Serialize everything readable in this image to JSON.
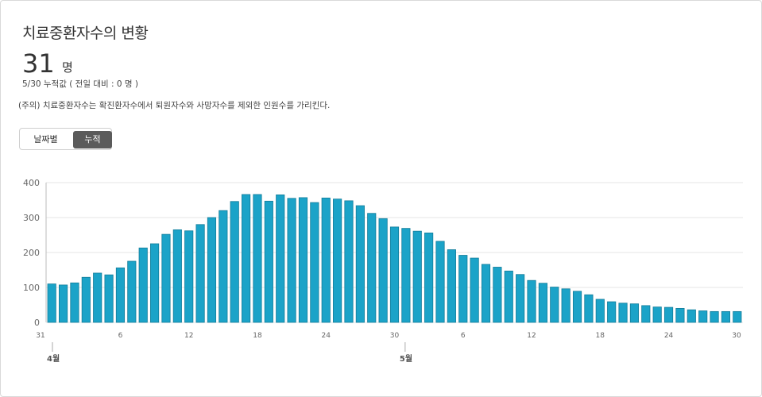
{
  "header": {
    "title": "치료중환자수의 변황",
    "value": "31",
    "unit": "명",
    "sub_line": "5/30 누적값 ( 전일 대비 : 0 명 )",
    "note": "(주의) 치료중환자수는 확진환자수에서 퇴원자수와 사망자수를 제외한 인원수를 가리킨다."
  },
  "toggle": {
    "daily_label": "날짜별",
    "cumulative_label": "누적",
    "selected": "cumulative"
  },
  "colors": {
    "bar_fill": "#1ba3c8",
    "bar_stroke": "#137c99",
    "grid": "#e6e6e6",
    "axis_text": "#666666"
  },
  "chart_data": {
    "type": "bar",
    "title": "",
    "xlabel": "",
    "ylabel": "",
    "ylim": [
      0,
      400
    ],
    "y_ticks": [
      0,
      100,
      200,
      300,
      400
    ],
    "grid": true,
    "x_tick_labels": [
      "31",
      "6",
      "12",
      "18",
      "24",
      "30",
      "6",
      "12",
      "18",
      "24",
      "30"
    ],
    "x_tick_indices": [
      0,
      6,
      12,
      18,
      24,
      30,
      36,
      42,
      48,
      54,
      60
    ],
    "month_labels": [
      {
        "label": "4월",
        "index": 1
      },
      {
        "label": "5월",
        "index": 31
      }
    ],
    "categories": [
      "3/31",
      "4/1",
      "4/2",
      "4/3",
      "4/4",
      "4/5",
      "4/6",
      "4/7",
      "4/8",
      "4/9",
      "4/10",
      "4/11",
      "4/12",
      "4/13",
      "4/14",
      "4/15",
      "4/16",
      "4/17",
      "4/18",
      "4/19",
      "4/20",
      "4/21",
      "4/22",
      "4/23",
      "4/24",
      "4/25",
      "4/26",
      "4/27",
      "4/28",
      "4/29",
      "4/30",
      "5/1",
      "5/2",
      "5/3",
      "5/4",
      "5/5",
      "5/6",
      "5/7",
      "5/8",
      "5/9",
      "5/10",
      "5/11",
      "5/12",
      "5/13",
      "5/14",
      "5/15",
      "5/16",
      "5/17",
      "5/18",
      "5/19",
      "5/20",
      "5/21",
      "5/22",
      "5/23",
      "5/24",
      "5/25",
      "5/26",
      "5/27",
      "5/28",
      "5/29",
      "5/30"
    ],
    "values": [
      110,
      107,
      113,
      129,
      141,
      136,
      156,
      175,
      213,
      225,
      252,
      265,
      262,
      280,
      300,
      320,
      346,
      366,
      366,
      347,
      365,
      355,
      357,
      343,
      356,
      353,
      348,
      334,
      312,
      297,
      273,
      269,
      261,
      256,
      232,
      208,
      192,
      184,
      166,
      158,
      147,
      137,
      120,
      112,
      101,
      96,
      89,
      79,
      66,
      59,
      55,
      53,
      48,
      44,
      43,
      40,
      36,
      33,
      31,
      31,
      31
    ]
  }
}
